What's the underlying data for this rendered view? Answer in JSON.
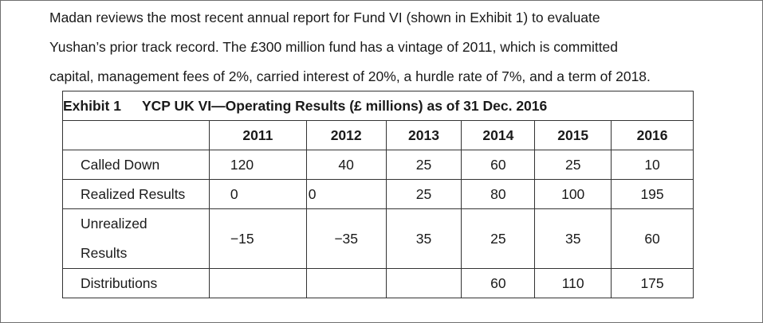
{
  "intro": {
    "lines": [
      "Madan reviews the most recent annual report for Fund VI (shown in Exhibit 1) to evaluate",
      "Yushan’s prior track record. The £300 million fund has a vintage of 2011, which is committed",
      "capital, management fees of 2%, carried interest of 20%, a hurdle rate of 7%, and a term of 2018."
    ]
  },
  "exhibit": {
    "label": "Exhibit 1",
    "title": "YCP UK VI—Operating Results (£ millions) as of 31 Dec. 2016",
    "years": [
      "2011",
      "2012",
      "2013",
      "2014",
      "2015",
      "2016"
    ],
    "rows": [
      {
        "label_lines": [
          "Called Down"
        ],
        "values": [
          "120",
          "40",
          "25",
          "60",
          "25",
          "10"
        ]
      },
      {
        "label_lines": [
          "Realized Results"
        ],
        "values": [
          "0",
          "0",
          "25",
          "80",
          "100",
          "195"
        ]
      },
      {
        "label_lines": [
          "Unrealized",
          "Results"
        ],
        "values": [
          "−15",
          "−35",
          "35",
          "25",
          "35",
          "60"
        ]
      },
      {
        "label_lines": [
          "Distributions"
        ],
        "values": [
          "",
          "",
          "",
          "60",
          "110",
          "175"
        ]
      }
    ]
  }
}
